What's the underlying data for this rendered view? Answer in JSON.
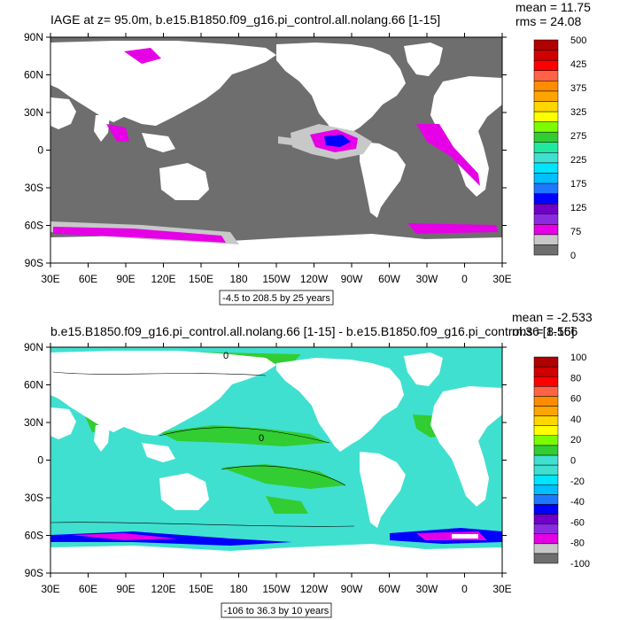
{
  "colors": {
    "land": "#ffffff",
    "grey_ocean": "#6e6e6e",
    "light_grey": "#c8c8c8",
    "magenta": "#e600e6",
    "purple": "#8a2be2",
    "blue": "#0000ff",
    "cyan_main": "#40e0d0",
    "green_main": "#00e600"
  },
  "panels": [
    {
      "id": "top",
      "title": "IAGE at z=  95.0m, b.e15.B1850.f09_g16.pi_control.all.nolang.66 [1-15]",
      "stats": [
        "mean = 11.75",
        "rms = 24.08"
      ],
      "range_note": "-4.5 to 208.5 by 25 years",
      "lat_labels": [
        "90N",
        "60N",
        "30N",
        "0",
        "30S",
        "60S",
        "90S"
      ],
      "lon_labels": [
        "30E",
        "60E",
        "90E",
        "120E",
        "150E",
        "180",
        "150W",
        "120W",
        "90W",
        "60W",
        "30W",
        "0",
        "30E"
      ],
      "colorbar": {
        "colors": [
          "#6e6e6e",
          "#c8c8c8",
          "#e600e6",
          "#8a2be2",
          "#7000c8",
          "#0000ff",
          "#1e78ff",
          "#00bfff",
          "#00e5ff",
          "#40e0d0",
          "#20e8a0",
          "#32cd32",
          "#7cfc00",
          "#ffff00",
          "#ffd700",
          "#ffa500",
          "#ff8c00",
          "#ff6347",
          "#ff0000",
          "#d00000",
          "#b00000"
        ],
        "labels": [
          "0",
          "75",
          "125",
          "175",
          "225",
          "275",
          "325",
          "375",
          "425",
          "500"
        ]
      }
    },
    {
      "id": "bottom",
      "title": "b.e15.B1850.f09_g16.pi_control.all.nolang.66 [1-15] - b.e15.B1850.f09_g16.pi_control.36 [1-15]",
      "stats": [
        "mean = -2.533",
        "rms = 8.566"
      ],
      "range_note": "-106 to 36.3 by 10 years",
      "lat_labels": [
        "90N",
        "60N",
        "30N",
        "0",
        "30S",
        "60S",
        "90S"
      ],
      "lon_labels": [
        "30E",
        "60E",
        "90E",
        "120E",
        "150E",
        "180",
        "150W",
        "120W",
        "90W",
        "60W",
        "30W",
        "0",
        "30E"
      ],
      "contour_label": "0",
      "colorbar": {
        "colors": [
          "#6e6e6e",
          "#c8c8c8",
          "#e600e6",
          "#8a2be2",
          "#7000c8",
          "#0000ff",
          "#1e78ff",
          "#00bfff",
          "#00e5ff",
          "#40e0d0",
          "#40e0d0",
          "#32cd32",
          "#7cfc00",
          "#ffff00",
          "#ffd700",
          "#ffa500",
          "#ff8c00",
          "#ff6347",
          "#ff0000",
          "#d00000",
          "#b00000"
        ],
        "labels": [
          "-100",
          "-80",
          "-60",
          "-40",
          "-20",
          "0",
          "20",
          "40",
          "60",
          "80",
          "100"
        ]
      }
    }
  ]
}
